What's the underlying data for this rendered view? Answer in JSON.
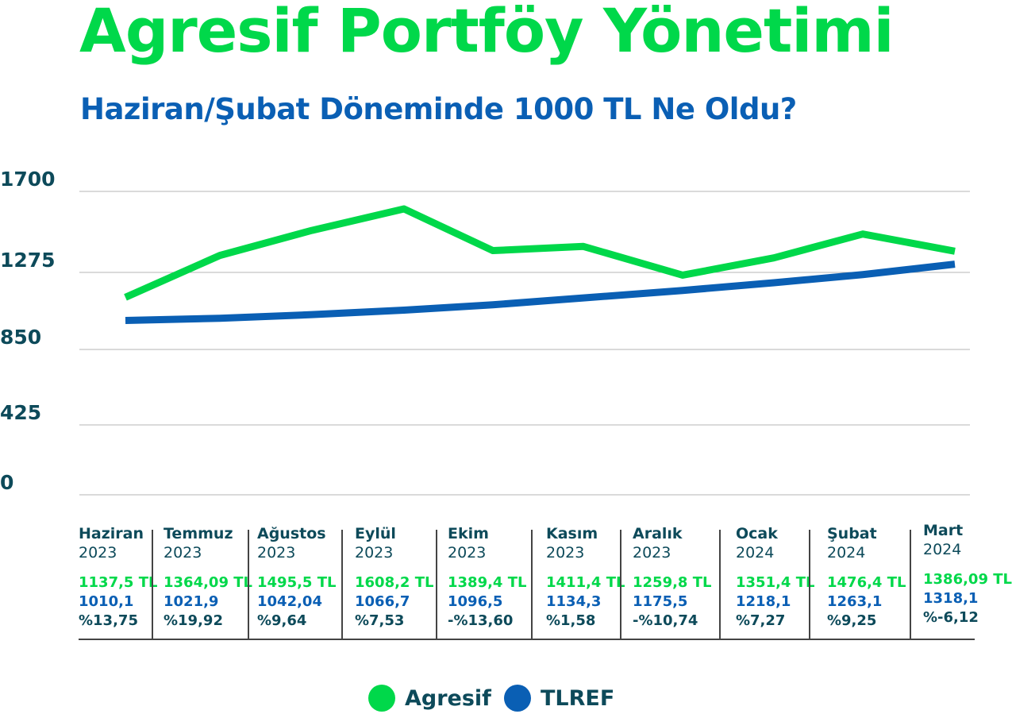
{
  "colors": {
    "agresif": "#00d84a",
    "tlref": "#0a5fb4",
    "text": "#0d4a5a"
  },
  "chart_data": {
    "type": "line",
    "title": "Agresif Portföy Yönetimi",
    "subtitle": "Haziran/Şubat Döneminde 1000 TL Ne Oldu?",
    "ylim": [
      0,
      1700
    ],
    "yticks": [
      "1700",
      "1275",
      "850",
      "425",
      "0"
    ],
    "yticks_values": [
      1700,
      1275,
      850,
      425,
      0
    ],
    "grid": true,
    "legend_position": "bottom",
    "categories": [
      {
        "month": "Haziran",
        "year": "2023",
        "agresif": "1137,5 TL",
        "tlref": "1010,1",
        "diff": "%13,75"
      },
      {
        "month": "Temmuz",
        "year": "2023",
        "agresif": "1364,09 TL",
        "tlref": "1021,9",
        "diff": "%19,92"
      },
      {
        "month": "Ağustos",
        "year": "2023",
        "agresif": "1495,5 TL",
        "tlref": "1042,04",
        "diff": "%9,64"
      },
      {
        "month": "Eylül",
        "year": "2023",
        "agresif": "1608,2 TL",
        "tlref": "1066,7",
        "diff": "%7,53"
      },
      {
        "month": "Ekim",
        "year": "2023",
        "agresif": "1389,4 TL",
        "tlref": "1096,5",
        "diff": "-%13,60"
      },
      {
        "month": "Kasım",
        "year": "2023",
        "agresif": "1411,4 TL",
        "tlref": "1134,3",
        "diff": "%1,58"
      },
      {
        "month": "Aralık",
        "year": "2023",
        "agresif": "1259,8 TL",
        "tlref": "1175,5",
        "diff": "-%10,74"
      },
      {
        "month": "Ocak",
        "year": "2024",
        "agresif": "1351,4 TL",
        "tlref": "1218,1",
        "diff": "%7,27"
      },
      {
        "month": "Şubat",
        "year": "2024",
        "agresif": "1476,4 TL",
        "tlref": "1263,1",
        "diff": "%9,25"
      },
      {
        "month": "Mart",
        "year": "2024",
        "agresif": "1386,09 TL",
        "tlref": "1318,1",
        "diff": "%-6,12"
      }
    ],
    "series": [
      {
        "name": "Agresif",
        "values": [
          1137.5,
          1364.09,
          1495.5,
          1608.2,
          1389.4,
          1411.4,
          1259.8,
          1351.4,
          1476.4,
          1386.09
        ]
      },
      {
        "name": "TLREF",
        "values": [
          1010.1,
          1021.9,
          1042.04,
          1066.7,
          1096.5,
          1134.3,
          1175.5,
          1218.1,
          1263.1,
          1318.1
        ]
      }
    ]
  }
}
